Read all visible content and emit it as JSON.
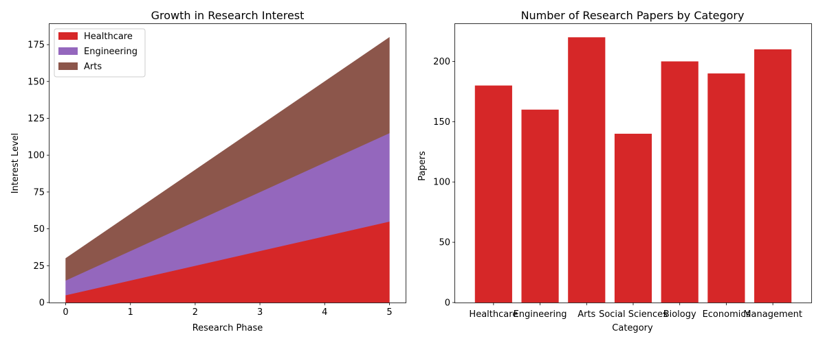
{
  "chart_data": [
    {
      "type": "area",
      "stacked": true,
      "title": "Growth in Research Interest",
      "xlabel": "Research Phase",
      "ylabel": "Interest Level",
      "x": [
        0,
        1,
        2,
        3,
        4,
        5
      ],
      "xlim": [
        -0.25,
        5.25
      ],
      "ylim": [
        0,
        189
      ],
      "xticks": [
        "0",
        "1",
        "2",
        "3",
        "4",
        "5"
      ],
      "yticks": [
        "0",
        "25",
        "50",
        "75",
        "100",
        "125",
        "150",
        "175"
      ],
      "legend_position": "upper-left",
      "grid": false,
      "series": [
        {
          "name": "Healthcare",
          "color": "#d62728",
          "values": [
            5,
            15,
            25,
            35,
            45,
            55
          ]
        },
        {
          "name": "Engineering",
          "color": "#9467bd",
          "values": [
            10,
            20,
            30,
            40,
            50,
            60
          ]
        },
        {
          "name": "Arts",
          "color": "#8c564b",
          "values": [
            15,
            25,
            35,
            45,
            55,
            65
          ]
        }
      ]
    },
    {
      "type": "bar",
      "title": "Number of Research Papers by Category",
      "xlabel": "Category",
      "ylabel": "Papers",
      "categories": [
        "Healthcare",
        "Engineering",
        "Arts",
        "Social Sciences",
        "Biology",
        "Economics",
        "Management"
      ],
      "values": [
        180,
        160,
        220,
        140,
        200,
        190,
        210
      ],
      "color": "#d62728",
      "ylim": [
        0,
        231
      ],
      "yticks": [
        "0",
        "50",
        "100",
        "150",
        "200"
      ],
      "grid": false
    }
  ]
}
